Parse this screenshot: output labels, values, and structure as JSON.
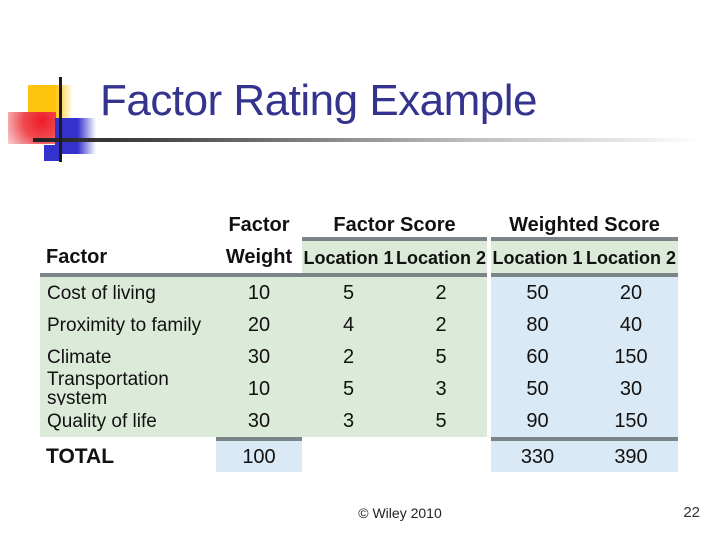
{
  "slide": {
    "title": "Factor Rating Example",
    "footer": {
      "copyright": "© Wiley 2010",
      "page_number": "22"
    }
  },
  "table": {
    "col1_header": "Factor",
    "weight_header": {
      "line1": "Factor",
      "line2": "Weight"
    },
    "groups": {
      "factor_score": "Factor Score",
      "weighted_score": "Weighted Score"
    },
    "location_headers": [
      "Location 1",
      "Location 2",
      "Location 1",
      "Location 2"
    ],
    "rows": [
      {
        "factor": "Cost of living",
        "weight": "10",
        "fs1": "5",
        "fs2": "2",
        "ws1": "50",
        "ws2": "20"
      },
      {
        "factor": "Proximity to family",
        "weight": "20",
        "fs1": "4",
        "fs2": "2",
        "ws1": "80",
        "ws2": "40"
      },
      {
        "factor": "Climate",
        "weight": "30",
        "fs1": "2",
        "fs2": "5",
        "ws1": "60",
        "ws2": "150"
      },
      {
        "factor": "Transportation system",
        "weight": "10",
        "fs1": "5",
        "fs2": "3",
        "ws1": "50",
        "ws2": "30"
      },
      {
        "factor": "Quality of life",
        "weight": "30",
        "fs1": "3",
        "fs2": "5",
        "ws1": "90",
        "ws2": "150"
      }
    ],
    "total": {
      "label": "TOTAL",
      "weight": "100",
      "ws1": "330",
      "ws2": "390"
    }
  },
  "colors": {
    "title_text": "#34348e",
    "band_green": "#dcead9",
    "band_blue": "#d9eaf6",
    "rule_gray": "#7b8487",
    "deco_yellow": "#ffc40d",
    "deco_red": "#ee1c25",
    "deco_blue": "#3431cd"
  }
}
